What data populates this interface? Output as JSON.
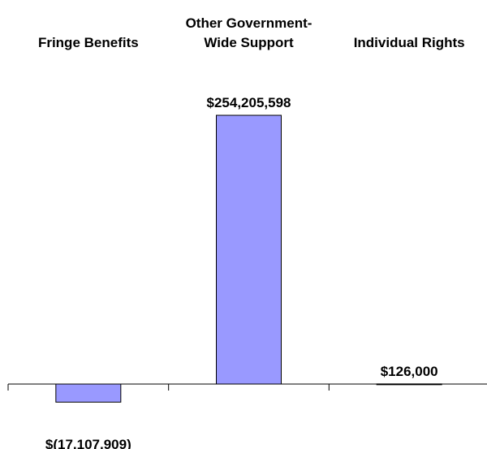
{
  "chart_data": {
    "type": "bar",
    "categories": [
      [
        "Fringe Benefits"
      ],
      [
        "Other Government-",
        "Wide Support"
      ],
      [
        "Individual Rights"
      ]
    ],
    "values": [
      -17107909,
      254205598,
      126000
    ],
    "data_labels": [
      "$(17,107,909)",
      "$254,205,598",
      "$126,000"
    ],
    "title": "",
    "xlabel": "",
    "ylabel": "",
    "legend": "none",
    "grid": false,
    "colors": {
      "bar_fill": "#9999ff",
      "bar_stroke": "#000000",
      "axis": "#000000"
    }
  }
}
